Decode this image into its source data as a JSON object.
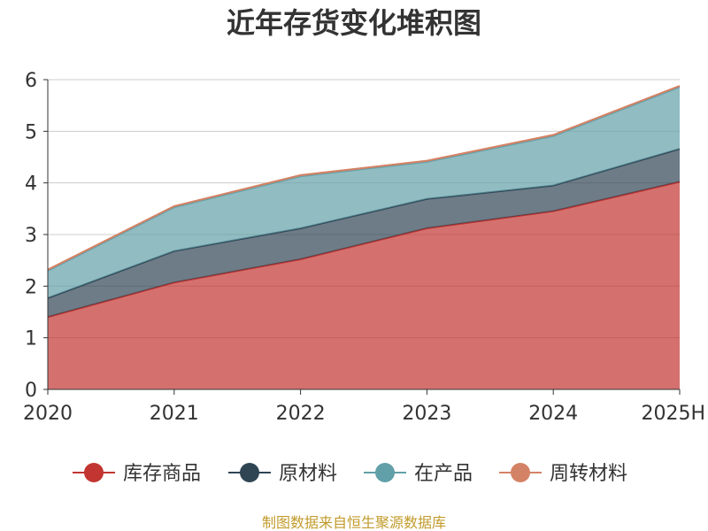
{
  "chart_data": {
    "type": "area",
    "stacked": true,
    "title": "近年存货变化堆积图",
    "categories": [
      "2020",
      "2021",
      "2022",
      "2023",
      "2024",
      "2025H"
    ],
    "ylim": [
      0,
      6
    ],
    "yticks": [
      0,
      1,
      2,
      3,
      4,
      5,
      6
    ],
    "grid": true,
    "legend_position": "bottom",
    "series": [
      {
        "name": "库存商品",
        "color": "#c23531",
        "values": [
          1.4,
          2.07,
          2.52,
          3.12,
          3.45,
          4.02
        ]
      },
      {
        "name": "原材料",
        "color": "#2f4554",
        "values": [
          0.37,
          0.61,
          0.6,
          0.57,
          0.5,
          0.64
        ]
      },
      {
        "name": "在产品",
        "color": "#61a0a8",
        "values": [
          0.53,
          0.85,
          1.01,
          0.72,
          0.96,
          1.2
        ]
      },
      {
        "name": "周转材料",
        "color": "#d48265",
        "values": [
          0.02,
          0.02,
          0.02,
          0.02,
          0.02,
          0.02
        ]
      }
    ],
    "source": "制图数据来自恒生聚源数据库"
  }
}
